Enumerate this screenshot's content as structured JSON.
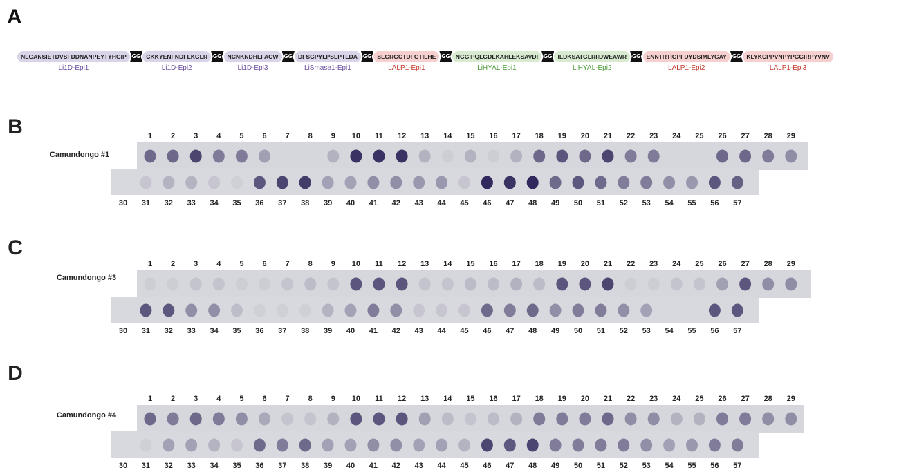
{
  "panel_a": {
    "label": "A",
    "linker": "GG",
    "segments": [
      {
        "sequence": "NLGANSIETDVSFDDNANPEYTYHGIP",
        "name": "Li1D-Epi1"
      },
      {
        "sequence": "CKKYENFNDFLKGLR",
        "name": "Li1D-Epi2"
      },
      {
        "sequence": "NCNKNDHLFACW",
        "name": "Li1D-Epi3"
      },
      {
        "sequence": "DFSGPYLPSLPTLDA",
        "name": "LiSmase1-Epi1"
      },
      {
        "sequence": "SLGRGCTDFGTILHE",
        "name": "LALP1-Epi1"
      },
      {
        "sequence": "NGGIPQLGDLKAHLEKSAVDI",
        "name": "LiHYAL-Epi1"
      },
      {
        "sequence": "ILDKSATGLRIIDWEAWR",
        "name": "LiHYAL-Epi2"
      },
      {
        "sequence": "ENNTRTIGPFDYDSIMLYGAY",
        "name": "LALP1-Epi2"
      },
      {
        "sequence": "KLYKCPPVNPYPGGIRPYVNV",
        "name": "LALP1-Epi3"
      }
    ]
  },
  "blots": [
    {
      "label": "B",
      "name": "Camundongo #1",
      "top_numbers": [
        1,
        2,
        3,
        4,
        5,
        6,
        7,
        8,
        9,
        10,
        11,
        12,
        13,
        14,
        15,
        16,
        17,
        18,
        19,
        20,
        21,
        22,
        23,
        24,
        25,
        26,
        27,
        28,
        29
      ],
      "bottom_numbers": [
        30,
        31,
        32,
        33,
        34,
        35,
        36,
        37,
        38,
        39,
        40,
        41,
        42,
        43,
        44,
        45,
        46,
        47,
        48,
        49,
        50,
        51,
        52,
        53,
        54,
        55,
        56,
        57
      ]
    },
    {
      "label": "C",
      "name": "Camundongo #3",
      "top_numbers": [
        1,
        2,
        3,
        4,
        5,
        6,
        7,
        8,
        9,
        10,
        11,
        12,
        13,
        14,
        15,
        16,
        17,
        18,
        19,
        20,
        21,
        22,
        23,
        24,
        25,
        26,
        27,
        28,
        29
      ],
      "bottom_numbers": [
        30,
        31,
        32,
        33,
        34,
        35,
        36,
        37,
        38,
        39,
        40,
        41,
        42,
        43,
        44,
        45,
        46,
        47,
        48,
        49,
        50,
        51,
        52,
        53,
        54,
        55,
        56,
        57
      ]
    },
    {
      "label": "D",
      "name": "Camundongo #4",
      "top_numbers": [
        1,
        2,
        3,
        4,
        5,
        6,
        7,
        8,
        9,
        10,
        11,
        12,
        13,
        14,
        15,
        16,
        17,
        18,
        19,
        20,
        21,
        22,
        23,
        24,
        25,
        26,
        27,
        28,
        29
      ],
      "bottom_numbers": [
        30,
        31,
        32,
        33,
        34,
        35,
        36,
        37,
        38,
        39,
        40,
        41,
        42,
        43,
        44,
        45,
        46,
        47,
        48,
        49,
        50,
        51,
        52,
        53,
        54,
        55,
        56,
        57
      ]
    }
  ]
}
